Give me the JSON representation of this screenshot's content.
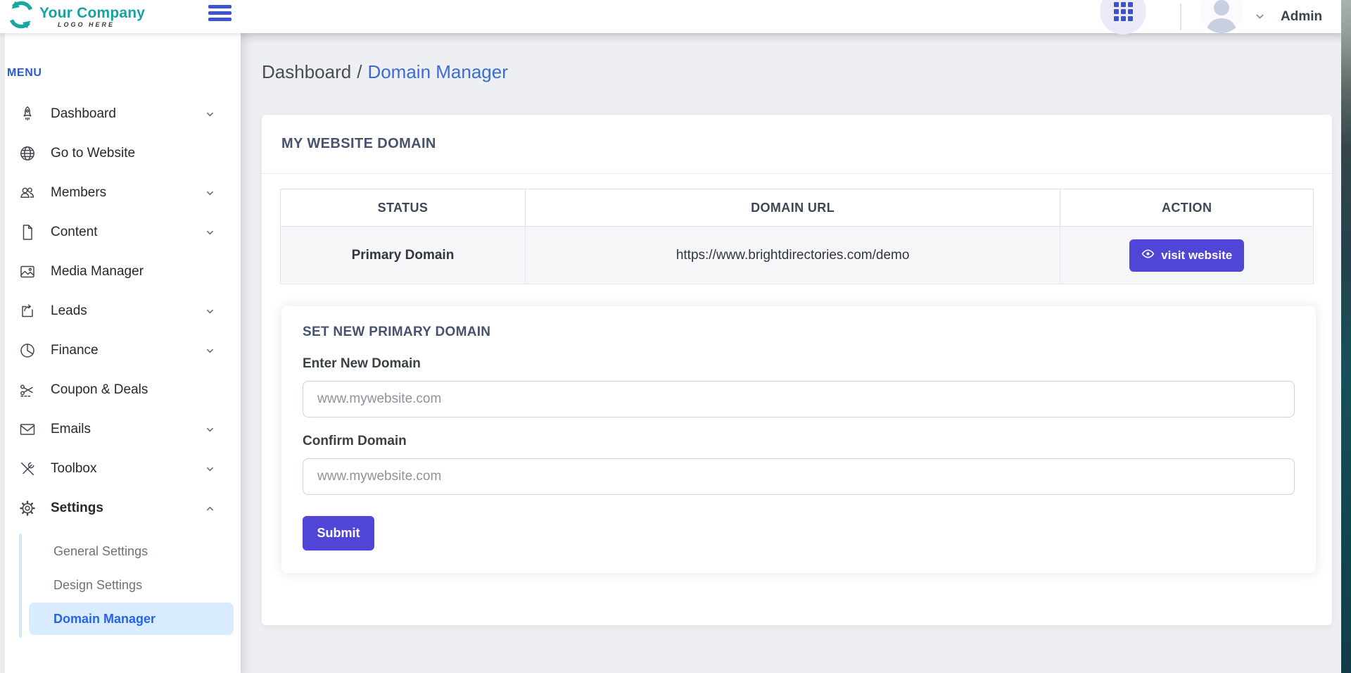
{
  "header": {
    "logo": {
      "title": "Your Company",
      "subtitle": "LOGO HERE",
      "icon": "circular-arrows-logo-icon"
    },
    "menu_toggle_icon": "hamburger-icon",
    "apps_icon": "grid-icon",
    "user": {
      "name": "Admin",
      "avatar_icon": "person-icon",
      "chevron_icon": "chevron-down-icon"
    }
  },
  "sidebar": {
    "section_label": "MENU",
    "items": [
      {
        "label": "Dashboard",
        "icon": "rocket-icon",
        "chevron": "down"
      },
      {
        "label": "Go to Website",
        "icon": "globe-icon",
        "chevron": null
      },
      {
        "label": "Members",
        "icon": "users-icon",
        "chevron": "down"
      },
      {
        "label": "Content",
        "icon": "file-icon",
        "chevron": "down"
      },
      {
        "label": "Media Manager",
        "icon": "image-icon",
        "chevron": null
      },
      {
        "label": "Leads",
        "icon": "arrow-back-icon",
        "chevron": "down"
      },
      {
        "label": "Finance",
        "icon": "pie-chart-icon",
        "chevron": "down"
      },
      {
        "label": "Coupon & Deals",
        "icon": "scissors-icon",
        "chevron": null
      },
      {
        "label": "Emails",
        "icon": "envelope-icon",
        "chevron": "down"
      },
      {
        "label": "Toolbox",
        "icon": "tools-icon",
        "chevron": "down"
      },
      {
        "label": "Settings",
        "icon": "gear-icon",
        "chevron": "up",
        "expanded": true,
        "submenu": [
          {
            "label": "General Settings",
            "active": false
          },
          {
            "label": "Design Settings",
            "active": false
          },
          {
            "label": "Domain Manager",
            "active": true
          }
        ]
      }
    ]
  },
  "breadcrumb": {
    "parent": "Dashboard",
    "separator": "/",
    "current": "Domain Manager"
  },
  "domain_card": {
    "title": "MY WEBSITE DOMAIN",
    "table": {
      "headers": [
        "STATUS",
        "DOMAIN URL",
        "ACTION"
      ],
      "rows": [
        {
          "status": "Primary Domain",
          "domain_url": "https://www.brightdirectories.com/demo",
          "action_label": "visit website",
          "action_icon": "eye-icon"
        }
      ]
    }
  },
  "new_domain_form": {
    "title": "SET NEW PRIMARY DOMAIN",
    "fields": [
      {
        "label": "Enter New Domain",
        "placeholder": "www.mywebsite.com",
        "value": ""
      },
      {
        "label": "Confirm Domain",
        "placeholder": "www.mywebsite.com",
        "value": ""
      }
    ],
    "submit_label": "Submit"
  },
  "colors": {
    "accent_indigo": "#5145d8",
    "brand_teal": "#19a7a4",
    "link_blue": "#3a6bd8",
    "menu_label_blue": "#2b5ad6",
    "active_item_bg": "#d9ecfd",
    "active_item_text": "#2563eb",
    "table_row_bg": "#f5f6f8"
  }
}
